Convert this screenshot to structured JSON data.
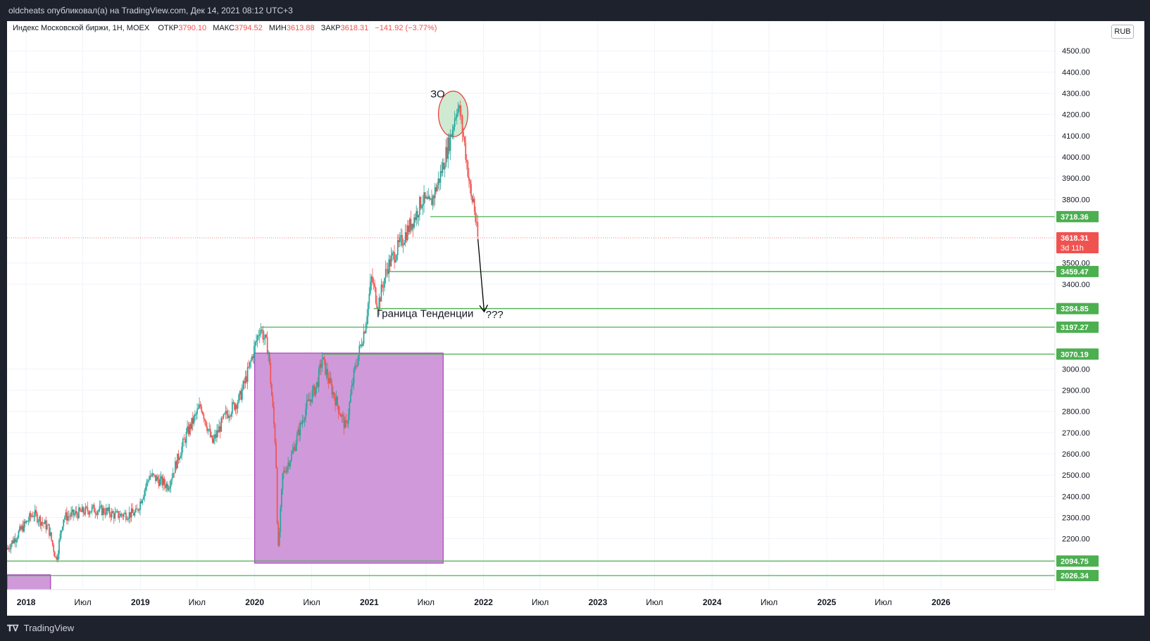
{
  "header": {
    "publish_line": "oldcheats опубликовал(а) на TradingView.com, Дек 14, 2021 08:12 UTC+3"
  },
  "legend": {
    "symbol": "Индекс Московской биржи, 1H, MOEX",
    "open_label": "ОТКР",
    "open_value": "3790.10",
    "high_label": "МАКС",
    "high_value": "3794.52",
    "low_label": "МИН",
    "low_value": "3613.88",
    "close_label": "ЗАКР",
    "close_value": "3618.31",
    "change": "−141.92 (−3.77%)"
  },
  "currency_badge": "RUB",
  "footer": {
    "brand": "TradingView",
    "logo": "tradingview-logo-icon"
  },
  "colors": {
    "up": "#26a69a",
    "down": "#ef5350",
    "level": "#4caf50",
    "box_fill": "#ce93d8",
    "box_stroke": "#9c27b0",
    "ellipse_fill": "#c8e6c9"
  },
  "chart_data": {
    "type": "candlestick",
    "y_axis": {
      "min": 1960,
      "max": 4640,
      "ticks": [
        "4500.00",
        "4400.00",
        "4300.00",
        "4200.00",
        "4100.00",
        "4000.00",
        "3900.00",
        "3800.00",
        "3500.00",
        "3400.00",
        "3000.00",
        "2900.00",
        "2800.00",
        "2700.00",
        "2600.00",
        "2500.00",
        "2400.00",
        "2300.00",
        "2200.00"
      ]
    },
    "x_axis": {
      "min": "2017-11-01",
      "max": "2026-12-31",
      "ticks": [
        {
          "date": "2018-01-01",
          "label": "2018",
          "bold": true
        },
        {
          "date": "2018-07-01",
          "label": "Июл",
          "bold": false
        },
        {
          "date": "2019-01-01",
          "label": "2019",
          "bold": true
        },
        {
          "date": "2019-07-01",
          "label": "Июл",
          "bold": false
        },
        {
          "date": "2020-01-01",
          "label": "2020",
          "bold": true
        },
        {
          "date": "2020-07-01",
          "label": "Июл",
          "bold": false
        },
        {
          "date": "2021-01-01",
          "label": "2021",
          "bold": true
        },
        {
          "date": "2021-07-01",
          "label": "Июл",
          "bold": false
        },
        {
          "date": "2022-01-01",
          "label": "2022",
          "bold": true
        },
        {
          "date": "2022-07-01",
          "label": "Июл",
          "bold": false
        },
        {
          "date": "2023-01-01",
          "label": "2023",
          "bold": true
        },
        {
          "date": "2023-07-01",
          "label": "Июл",
          "bold": false
        },
        {
          "date": "2024-01-01",
          "label": "2024",
          "bold": true
        },
        {
          "date": "2024-07-01",
          "label": "Июл",
          "bold": false
        },
        {
          "date": "2025-01-01",
          "label": "2025",
          "bold": true
        },
        {
          "date": "2025-07-01",
          "label": "Июл",
          "bold": false
        },
        {
          "date": "2026-01-01",
          "label": "2026",
          "bold": true
        }
      ]
    },
    "price_path": [
      [
        "2017-11-01",
        2150
      ],
      [
        "2018-01-25",
        2320
      ],
      [
        "2018-03-15",
        2250
      ],
      [
        "2018-04-09",
        2100
      ],
      [
        "2018-05-01",
        2300
      ],
      [
        "2018-08-01",
        2340
      ],
      [
        "2018-09-15",
        2330
      ],
      [
        "2018-10-15",
        2310
      ],
      [
        "2018-12-20",
        2320
      ],
      [
        "2019-02-01",
        2500
      ],
      [
        "2019-04-01",
        2450
      ],
      [
        "2019-06-01",
        2700
      ],
      [
        "2019-07-15",
        2830
      ],
      [
        "2019-08-20",
        2650
      ],
      [
        "2019-10-01",
        2780
      ],
      [
        "2019-11-15",
        2860
      ],
      [
        "2019-12-15",
        3000
      ],
      [
        "2020-01-20",
        3200
      ],
      [
        "2020-02-15",
        3090
      ],
      [
        "2020-03-10",
        2620
      ],
      [
        "2020-03-17",
        2120
      ],
      [
        "2020-04-01",
        2500
      ],
      [
        "2020-05-01",
        2600
      ],
      [
        "2020-06-15",
        2820
      ],
      [
        "2020-07-20",
        2930
      ],
      [
        "2020-08-05",
        3050
      ],
      [
        "2020-09-01",
        2920
      ],
      [
        "2020-10-20",
        2720
      ],
      [
        "2020-11-15",
        2980
      ],
      [
        "2020-12-20",
        3200
      ],
      [
        "2021-01-10",
        3430
      ],
      [
        "2021-01-30",
        3300
      ],
      [
        "2021-03-01",
        3480
      ],
      [
        "2021-04-15",
        3600
      ],
      [
        "2021-06-01",
        3730
      ],
      [
        "2021-06-20",
        3800
      ],
      [
        "2021-07-15",
        3770
      ],
      [
        "2021-08-15",
        3900
      ],
      [
        "2021-09-20",
        4100
      ],
      [
        "2021-10-10",
        4240
      ],
      [
        "2021-10-20",
        4200
      ],
      [
        "2021-11-01",
        4080
      ],
      [
        "2021-11-15",
        3920
      ],
      [
        "2021-11-25",
        3790
      ],
      [
        "2021-12-01",
        3800
      ],
      [
        "2021-12-14",
        3618
      ]
    ],
    "levels": [
      {
        "value": 3718.36,
        "label": "3718.36",
        "start": "2021-07-15"
      },
      {
        "value": 3459.47,
        "label": "3459.47",
        "start": "2021-03-01"
      },
      {
        "value": 3284.85,
        "label": "3284.85",
        "start": "2021-01-15"
      },
      {
        "value": 3197.27,
        "label": "3197.27",
        "start": "2020-01-20"
      },
      {
        "value": 3070.19,
        "label": "3070.19",
        "start": "2020-08-05"
      },
      {
        "value": 2094.75,
        "label": "2094.75",
        "start": "2017-11-01"
      },
      {
        "value": 2026.34,
        "label": "2026.34",
        "start": "2017-11-01"
      }
    ],
    "current_price": {
      "value": 3618.31,
      "label": "3618.31",
      "countdown": "3d 11h"
    },
    "boxes": [
      {
        "x0": "2020-01-01",
        "x1": "2021-08-25",
        "y0": 2085,
        "y1": 3075
      },
      {
        "x0": "2017-11-01",
        "x1": "2018-03-20",
        "y0": 1960,
        "y1": 2030
      }
    ],
    "ellipse": {
      "x0": "2021-08-10",
      "x1": "2021-11-12",
      "y0": 4095,
      "y1": 4310
    },
    "arrow": {
      "from_date": "2021-12-14",
      "from_value": 3612,
      "to_date": "2022-01-03",
      "to_value": 3270
    },
    "annotations": [
      {
        "text": "ЗО",
        "date": "2021-07-15",
        "value": 4280
      },
      {
        "text": "Граница Тенденции",
        "date": "2021-01-25",
        "value": 3245
      },
      {
        "text": "???",
        "date": "2022-01-08",
        "value": 3240
      }
    ]
  }
}
